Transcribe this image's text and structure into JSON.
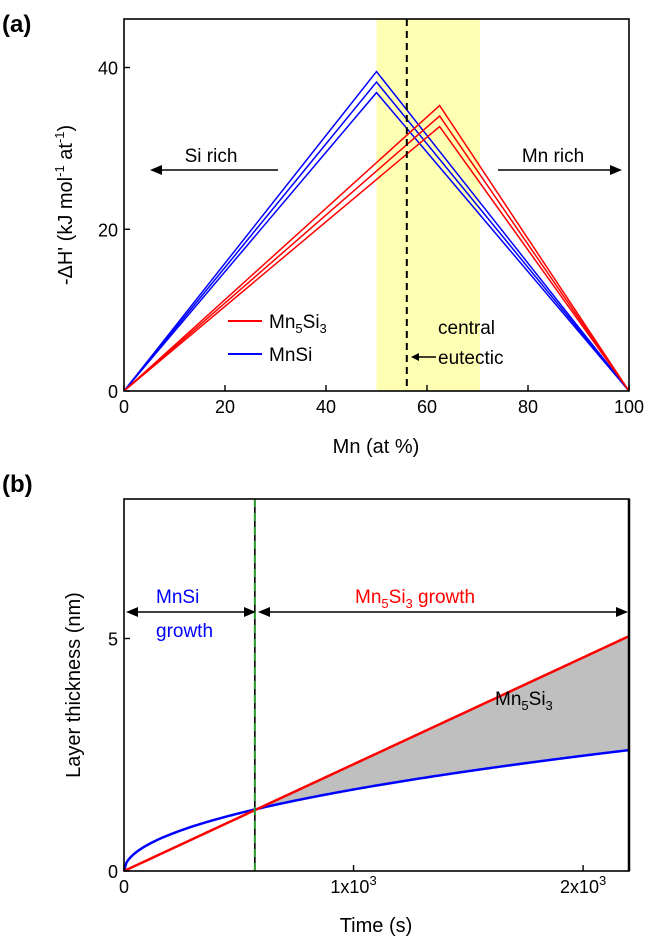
{
  "chart_data": [
    {
      "type": "line",
      "panel_label": "(a)",
      "xlabel": "Mn (at %)",
      "ylabel": "-ΔH' (kJ mol-1 at-1)",
      "ylabel_parts": {
        "pre": "-ΔH' (kJ mol",
        "sup1": "-1",
        "mid": " at",
        "sup2": "-1",
        "post": ")"
      },
      "xlim": [
        0,
        100
      ],
      "ylim": [
        0,
        46
      ],
      "xticks": [
        0,
        20,
        40,
        60,
        80,
        100
      ],
      "yticks": [
        0,
        20,
        40
      ],
      "legend": {
        "placement": "lower-left",
        "entries": [
          {
            "base": "Mn",
            "sub1": "5",
            "mid": "Si",
            "sub2": "3",
            "color": "#ff0000"
          },
          {
            "base": "MnSi",
            "color": "#0000ff"
          }
        ]
      },
      "shaded_band": {
        "x": [
          50,
          70.5
        ],
        "color": "#ffffb3"
      },
      "vline": {
        "x": 56,
        "style": "dashed"
      },
      "annotations": {
        "si_rich": "Si rich",
        "mn_rich": "Mn rich",
        "central": "central",
        "eutectic": "eutectic"
      },
      "series": [
        {
          "name": "MnSi",
          "color": "#0000ff",
          "lines": [
            {
              "x": [
                0,
                50,
                100
              ],
              "y": [
                0,
                39.5,
                0
              ]
            },
            {
              "x": [
                0,
                50,
                100
              ],
              "y": [
                0,
                38.2,
                0
              ]
            },
            {
              "x": [
                0,
                50,
                100
              ],
              "y": [
                0,
                36.9,
                0
              ]
            }
          ]
        },
        {
          "name": "Mn5Si3",
          "color": "#ff0000",
          "lines": [
            {
              "x": [
                0,
                62.5,
                100
              ],
              "y": [
                0,
                35.3,
                0
              ]
            },
            {
              "x": [
                0,
                62.5,
                100
              ],
              "y": [
                0,
                34.0,
                0
              ]
            },
            {
              "x": [
                0,
                62.5,
                100
              ],
              "y": [
                0,
                32.7,
                0
              ]
            }
          ]
        }
      ]
    },
    {
      "type": "line",
      "panel_label": "(b)",
      "xlabel": "Time (s)",
      "ylabel": "Layer thickness (nm)",
      "xlim": [
        0,
        2200
      ],
      "ylim": [
        0,
        8.0
      ],
      "xticks": [
        {
          "value": 0,
          "label": "0"
        },
        {
          "value": 1000,
          "base": "1x10",
          "exp": "3"
        },
        {
          "value": 2000,
          "base": "2x10",
          "exp": "3"
        }
      ],
      "yticks": [
        0,
        5
      ],
      "vlines": [
        {
          "x": 570,
          "style": "dashed-green"
        },
        {
          "x": 2200,
          "style": "solid"
        }
      ],
      "annotations": {
        "mnsi_growth_1": "MnSi",
        "mnsi_growth_2": "growth",
        "mn5si3_growth": {
          "base": "Mn",
          "sub1": "5",
          "mid": "Si",
          "sub2": "3",
          "post": " growth"
        },
        "mn5si3_label": {
          "base": "Mn",
          "sub1": "5",
          "mid": "Si",
          "sub2": "3"
        }
      },
      "series": [
        {
          "name": "MnSi",
          "color": "#0000ff",
          "model": "sqrt",
          "y_at_xmax": 2.6,
          "xmax": 2200
        },
        {
          "name": "Mn5Si3",
          "color": "#ff0000",
          "model": "linear",
          "y_at_xmax": 5.05,
          "xmax": 2200
        }
      ],
      "shaded_region": {
        "between": [
          "Mn5Si3",
          "MnSi"
        ],
        "x_from": 570,
        "x_to": 2200,
        "color": "#bfbfbf"
      }
    }
  ]
}
